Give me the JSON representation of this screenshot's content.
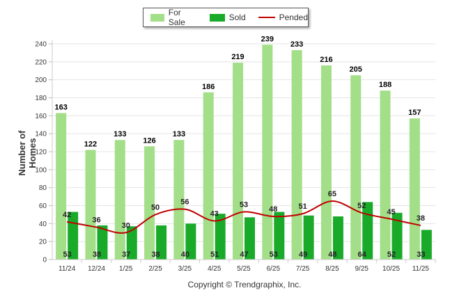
{
  "legend": {
    "for_sale": "For Sale",
    "sold": "Sold",
    "pended": "Pended"
  },
  "footer": "Copyright © Trendgraphix, Inc.",
  "colors": {
    "for_sale": "#a3de88",
    "sold": "#1aaa2a",
    "pended": "#c00000",
    "grid": "#e4e4e4"
  },
  "chart_data": {
    "type": "bar",
    "title": "",
    "xlabel": "",
    "ylabel": "Number of Homes",
    "ylim": [
      0,
      240
    ],
    "yticks": [
      0,
      20,
      40,
      60,
      80,
      100,
      120,
      140,
      160,
      180,
      200,
      220,
      240
    ],
    "grid": true,
    "legend_position": "top-center",
    "categories": [
      "11/24",
      "12/24",
      "1/25",
      "2/25",
      "3/25",
      "4/25",
      "5/25",
      "6/25",
      "7/25",
      "8/25",
      "9/25",
      "10/25",
      "11/25"
    ],
    "series": [
      {
        "name": "For Sale",
        "type": "bar",
        "values": [
          163,
          122,
          133,
          126,
          133,
          186,
          219,
          239,
          233,
          216,
          205,
          188,
          157
        ]
      },
      {
        "name": "Sold",
        "type": "bar",
        "values": [
          53,
          38,
          37,
          38,
          40,
          51,
          47,
          53,
          49,
          48,
          64,
          52,
          33
        ]
      },
      {
        "name": "Pended",
        "type": "line",
        "values": [
          42,
          36,
          30,
          50,
          56,
          43,
          53,
          48,
          51,
          65,
          52,
          45,
          38
        ]
      }
    ]
  }
}
